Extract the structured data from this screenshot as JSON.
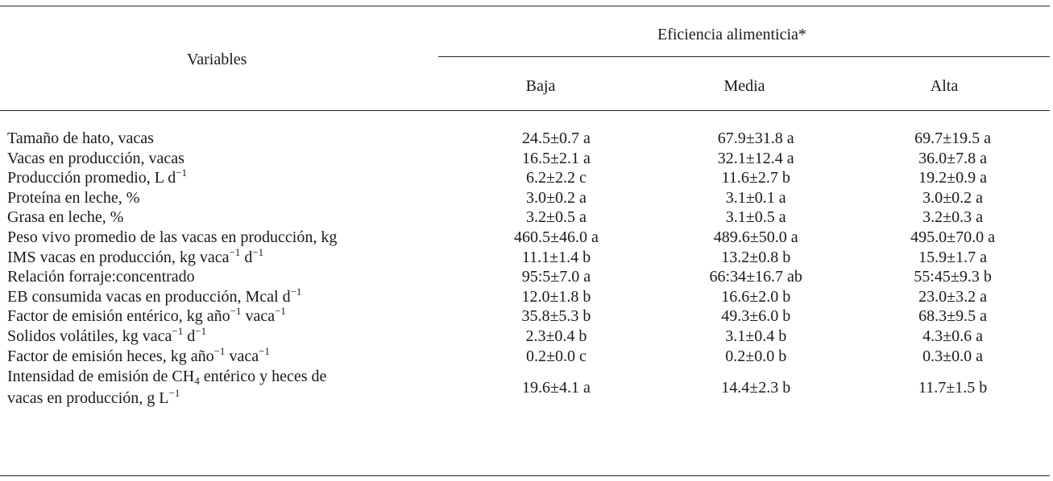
{
  "header": {
    "variables": "Variables",
    "group": "Eficiencia alimenticia*",
    "columns": [
      "Baja",
      "Media",
      "Alta"
    ]
  },
  "rows": [
    {
      "label": "Tamaño de hato, vacas",
      "values": [
        "24.5±0.7 a",
        "67.9±31.8 a",
        "69.7±19.5 a"
      ]
    },
    {
      "label": "Vacas en producción, vacas",
      "values": [
        "16.5±2.1 a",
        "32.1±12.4 a",
        "36.0±7.8 a"
      ]
    },
    {
      "label": "Producción promedio, L d",
      "label_sup": "−1",
      "values": [
        "6.2±2.2 c",
        "11.6±2.7 b",
        "19.2±0.9 a"
      ]
    },
    {
      "label": "Proteína en leche, %",
      "values": [
        "3.0±0.2 a",
        "3.1±0.1 a",
        "3.0±0.2 a"
      ]
    },
    {
      "label": "Grasa en leche, %",
      "values": [
        "3.2±0.5 a",
        "3.1±0.5 a",
        "3.2±0.3 a"
      ]
    },
    {
      "label": "Peso vivo promedio de las vacas en producción, kg",
      "values": [
        "460.5±46.0 a",
        "489.6±50.0 a",
        "495.0±70.0 a"
      ]
    },
    {
      "label": "IMS vacas en producción, kg vaca",
      "label_sup": "−1",
      "label_2": " d",
      "label_sup_2": "−1",
      "values": [
        "11.1±1.4 b",
        "13.2±0.8 b",
        "15.9±1.7 a"
      ]
    },
    {
      "label": "Relación forraje:concentrado",
      "values": [
        "95:5±7.0 a",
        "66:34±16.7 ab",
        "55:45±9.3 b"
      ]
    },
    {
      "label": "EB consumida vacas en producción, Mcal d",
      "label_sup": "−1",
      "values": [
        "12.0±1.8 b",
        "16.6±2.0 b",
        "23.0±3.2 a"
      ]
    },
    {
      "label": "Factor de emisión entérico, kg año",
      "label_sup": "−1",
      "label_2": " vaca",
      "label_sup_2": "−1",
      "values": [
        "35.8±5.3 b",
        "49.3±6.0 b",
        "68.3±9.5 a"
      ]
    },
    {
      "label": "Solidos volátiles, kg vaca",
      "label_sup": "−1",
      "label_2": " d",
      "label_sup_2": "−1",
      "values": [
        "2.3±0.4 b",
        "3.1±0.4 b",
        "4.3±0.6 a"
      ]
    },
    {
      "label": "Factor de emisión heces, kg año",
      "label_sup": "−1",
      "label_2": " vaca",
      "label_sup_2": "−1",
      "values": [
        "0.2±0.0 c",
        "0.2±0.0 b",
        "0.3±0.0 a"
      ]
    }
  ],
  "last_row": {
    "line1_a": "Intensidad de emisión de CH",
    "line1_sub": "4",
    "line1_b": " entérico y heces de",
    "line2": "vacas en producción, g L",
    "line2_sup": "−1",
    "values": [
      "19.6±4.1 a",
      "14.4±2.3 b",
      "11.7±1.5 b"
    ]
  }
}
